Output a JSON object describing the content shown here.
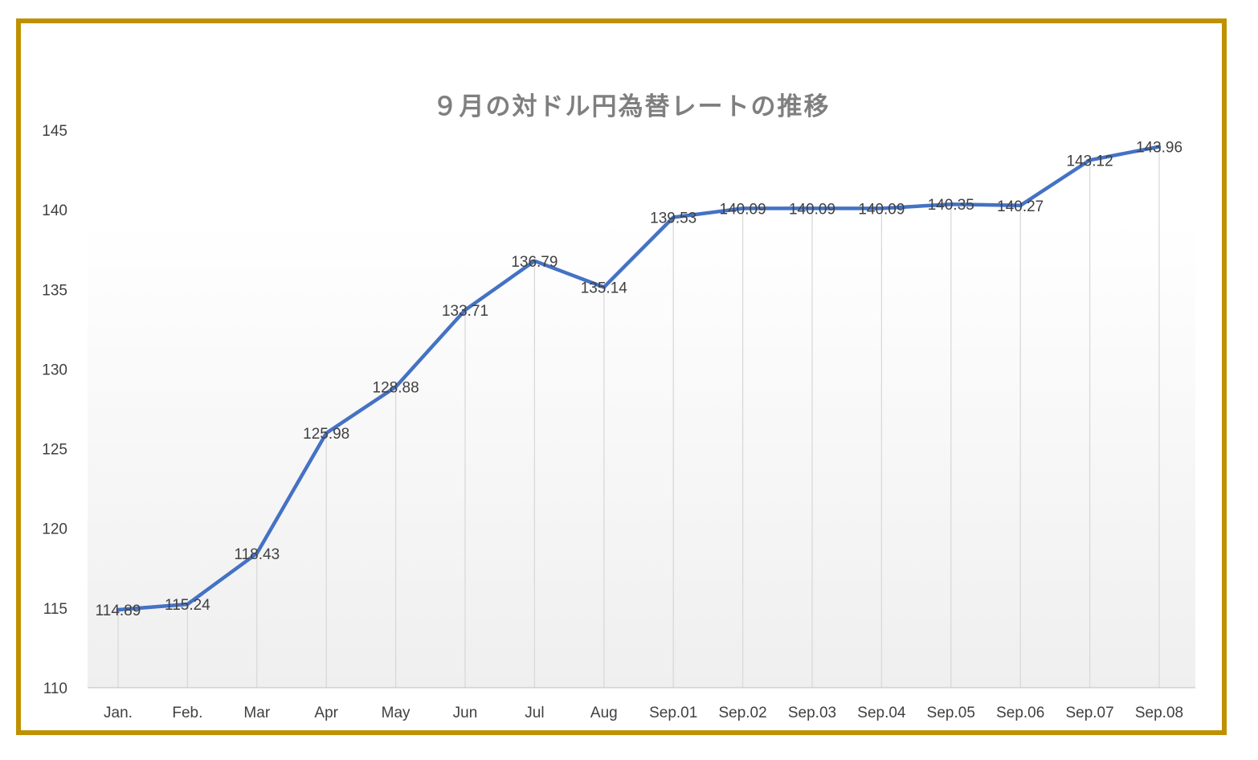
{
  "chart_data": {
    "type": "line",
    "title": "９月の対ドル円為替レートの推移",
    "xlabel": "",
    "ylabel": "",
    "categories": [
      "Jan.",
      "Feb.",
      "Mar",
      "Apr",
      "May",
      "Jun",
      "Jul",
      "Aug",
      "Sep.01",
      "Sep.02",
      "Sep.03",
      "Sep.04",
      "Sep.05",
      "Sep.06",
      "Sep.07",
      "Sep.08"
    ],
    "series": [
      {
        "values": [
          114.89,
          115.24,
          118.43,
          125.98,
          128.88,
          133.71,
          136.79,
          135.14,
          139.53,
          140.09,
          140.09,
          140.09,
          140.35,
          140.27,
          143.12,
          143.96
        ],
        "labels": [
          "114.89",
          "115.24",
          "118.43",
          "125.98",
          "128.88",
          "133.71",
          "136.79",
          "135.14",
          "139.53",
          "140.09",
          "140.09",
          "140.09",
          "140.35",
          "140.27",
          "143.12",
          "143.96"
        ],
        "color": "#4472c4"
      }
    ],
    "yticks": [
      "110",
      "115",
      "120",
      "125",
      "130",
      "135",
      "140",
      "145"
    ],
    "ylim": [
      110,
      145
    ],
    "grid": "vertical",
    "legend": "none",
    "colors": {
      "line": "#4472c4",
      "frame": "#bf9000",
      "grid": "#d9d9d9",
      "axis": "#bfbfbf"
    }
  }
}
